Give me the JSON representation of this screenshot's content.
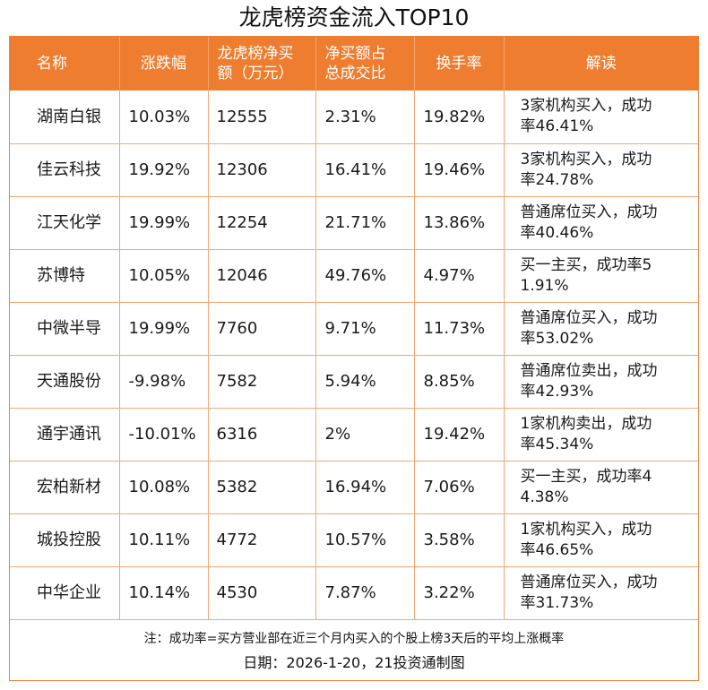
{
  "title": "龙虎榜资金流入TOP10",
  "headers": [
    "名称",
    "涨跌幅",
    "龙虎榜净买额（万元）",
    "净买额占总成交比",
    "换手率",
    "解读"
  ],
  "header_lines": {
    "col2_line1": "龙虎榜净买",
    "col2_line2": "额（万元）",
    "col3_line1": "净买额占",
    "col3_line2": "总成交比"
  },
  "rows": [
    {
      "name": "湖南白银",
      "change": "10.03%",
      "net_buy": "12555",
      "ratio": "2.31%",
      "turnover": "19.82%",
      "note_l1": "3家机构买入，成功",
      "note_l2": "率46.41%"
    },
    {
      "name": "佳云科技",
      "change": "19.92%",
      "net_buy": "12306",
      "ratio": "16.41%",
      "turnover": "19.46%",
      "note_l1": "3家机构买入，成功",
      "note_l2": "率24.78%"
    },
    {
      "name": "江天化学",
      "change": "19.99%",
      "net_buy": "12254",
      "ratio": "21.71%",
      "turnover": "13.86%",
      "note_l1": "普通席位买入，成功",
      "note_l2": "率40.46%"
    },
    {
      "name": "苏博特",
      "change": "10.05%",
      "net_buy": "12046",
      "ratio": "49.76%",
      "turnover": "4.97%",
      "note_l1": "买一主买，成功率5",
      "note_l2": "1.91%"
    },
    {
      "name": "中微半导",
      "change": "19.99%",
      "net_buy": "7760",
      "ratio": "9.71%",
      "turnover": "11.73%",
      "note_l1": "普通席位买入，成功",
      "note_l2": "率53.02%"
    },
    {
      "name": "天通股份",
      "change": "-9.98%",
      "net_buy": "7582",
      "ratio": "5.94%",
      "turnover": "8.85%",
      "note_l1": "普通席位卖出，成功",
      "note_l2": "率42.93%"
    },
    {
      "name": "通宇通讯",
      "change": "-10.01%",
      "net_buy": "6316",
      "ratio": "2%",
      "turnover": "19.42%",
      "note_l1": "1家机构卖出，成功",
      "note_l2": "率45.34%"
    },
    {
      "name": "宏柏新材",
      "change": "10.08%",
      "net_buy": "5382",
      "ratio": "16.94%",
      "turnover": "7.06%",
      "note_l1": "买一主买，成功率4",
      "note_l2": "4.38%"
    },
    {
      "name": "城投控股",
      "change": "10.11%",
      "net_buy": "4772",
      "ratio": "10.57%",
      "turnover": "3.58%",
      "note_l1": "1家机构买入，成功",
      "note_l2": "率46.65%"
    },
    {
      "name": "中华企业",
      "change": "10.14%",
      "net_buy": "4530",
      "ratio": "7.87%",
      "turnover": "3.22%",
      "note_l1": "普通席位买入，成功",
      "note_l2": "率31.73%"
    }
  ],
  "footnote": "注：成功率=买方营业部在近三个月内买入的个股上榜3天后的平均上涨概率",
  "date_line": "日期：2026-1-20，21投资通制图",
  "colors": {
    "header_bg": "#ef7d2f",
    "border": "#f0a878"
  }
}
